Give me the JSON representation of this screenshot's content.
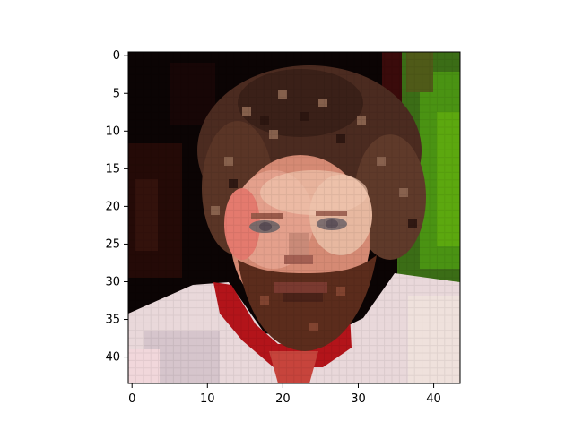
{
  "image_plot": {
    "image_description_color_note": "pixelated portrait",
    "colors": {
      "frame": "#000000",
      "background_dark": "#0b0404",
      "background_green": "#3f8a10",
      "hair": "#5a3424",
      "skin": "#d48874",
      "beard": "#5b2c1c",
      "shirt": "#e8d6d8",
      "collar_red": "#b5141b"
    },
    "grid_size": {
      "rows": 44,
      "cols": 44
    },
    "x_ticks": [
      "0",
      "10",
      "20",
      "30",
      "40"
    ],
    "y_ticks": [
      "0",
      "5",
      "10",
      "15",
      "20",
      "25",
      "30",
      "35",
      "40"
    ]
  }
}
